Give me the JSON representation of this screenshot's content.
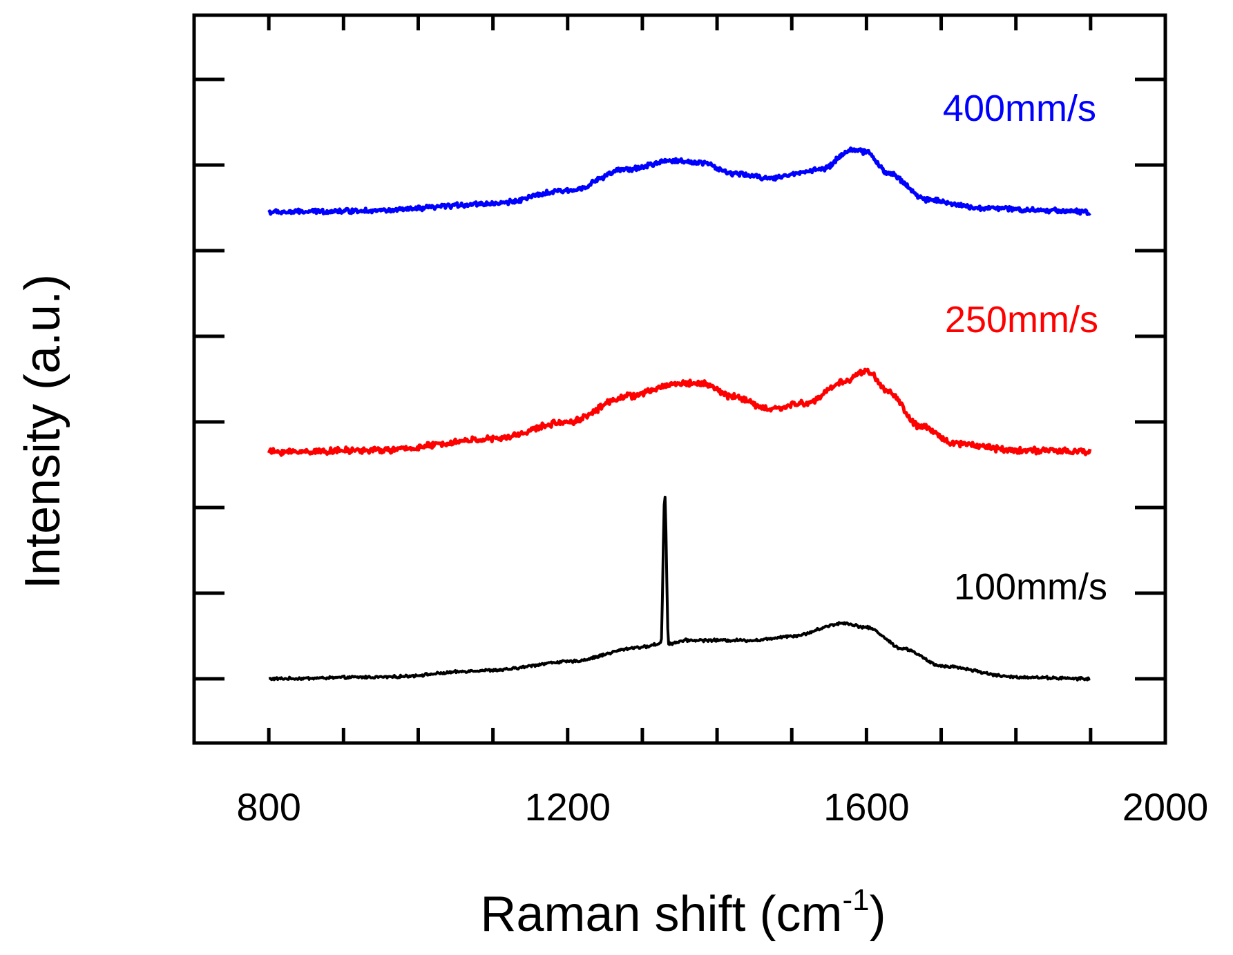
{
  "chart_data": {
    "type": "line",
    "title": "",
    "xlabel": {
      "main": "Raman shift (cm",
      "sup": "-1",
      "close": ")"
    },
    "ylabel": "Intensity (a.u.)",
    "xlim": [
      700,
      2000
    ],
    "ylim": [
      0,
      8.5
    ],
    "x_ticks": [
      800,
      1200,
      1600,
      2000
    ],
    "x_tick_labels": [
      "800",
      "1200",
      "1600",
      "2000"
    ],
    "x_minor_ticks": [
      800,
      900,
      1000,
      1100,
      1200,
      1300,
      1400,
      1500,
      1600,
      1700,
      1800,
      1900
    ],
    "y_tick_values": [
      0.75,
      1.75,
      2.75,
      3.75,
      4.75,
      5.75,
      6.75,
      7.75
    ],
    "y_tick_labels_shown": false,
    "grid": false,
    "x_range_data": [
      800,
      1900
    ],
    "series": [
      {
        "name": "100mm/s",
        "color": "#000000",
        "label_text": "100mm/s",
        "keypoints": [
          [
            800,
            0.75
          ],
          [
            950,
            0.77
          ],
          [
            1100,
            0.85
          ],
          [
            1200,
            0.95
          ],
          [
            1300,
            1.12
          ],
          [
            1325,
            1.16
          ],
          [
            1330,
            2.9
          ],
          [
            1335,
            1.16
          ],
          [
            1360,
            1.2
          ],
          [
            1450,
            1.2
          ],
          [
            1500,
            1.25
          ],
          [
            1570,
            1.4
          ],
          [
            1600,
            1.35
          ],
          [
            1650,
            1.1
          ],
          [
            1700,
            0.9
          ],
          [
            1800,
            0.77
          ],
          [
            1900,
            0.75
          ]
        ],
        "noise": 0.012
      },
      {
        "name": "250mm/s",
        "color": "#ff0000",
        "label_text": "250mm/s",
        "keypoints": [
          [
            800,
            3.4
          ],
          [
            950,
            3.42
          ],
          [
            1100,
            3.55
          ],
          [
            1200,
            3.75
          ],
          [
            1280,
            4.05
          ],
          [
            1350,
            4.2
          ],
          [
            1380,
            4.2
          ],
          [
            1420,
            4.05
          ],
          [
            1470,
            3.9
          ],
          [
            1520,
            3.97
          ],
          [
            1570,
            4.22
          ],
          [
            1600,
            4.35
          ],
          [
            1630,
            4.1
          ],
          [
            1670,
            3.7
          ],
          [
            1720,
            3.5
          ],
          [
            1800,
            3.42
          ],
          [
            1900,
            3.4
          ]
        ],
        "noise": 0.028
      },
      {
        "name": "400mm/s",
        "color": "#0000ff",
        "label_text": "400mm/s",
        "keypoints": [
          [
            800,
            6.2
          ],
          [
            950,
            6.22
          ],
          [
            1100,
            6.3
          ],
          [
            1200,
            6.45
          ],
          [
            1280,
            6.7
          ],
          [
            1340,
            6.8
          ],
          [
            1380,
            6.78
          ],
          [
            1420,
            6.65
          ],
          [
            1470,
            6.6
          ],
          [
            1540,
            6.7
          ],
          [
            1580,
            6.93
          ],
          [
            1600,
            6.9
          ],
          [
            1630,
            6.65
          ],
          [
            1680,
            6.35
          ],
          [
            1750,
            6.25
          ],
          [
            1850,
            6.22
          ],
          [
            1900,
            6.2
          ]
        ],
        "noise": 0.022
      }
    ]
  }
}
